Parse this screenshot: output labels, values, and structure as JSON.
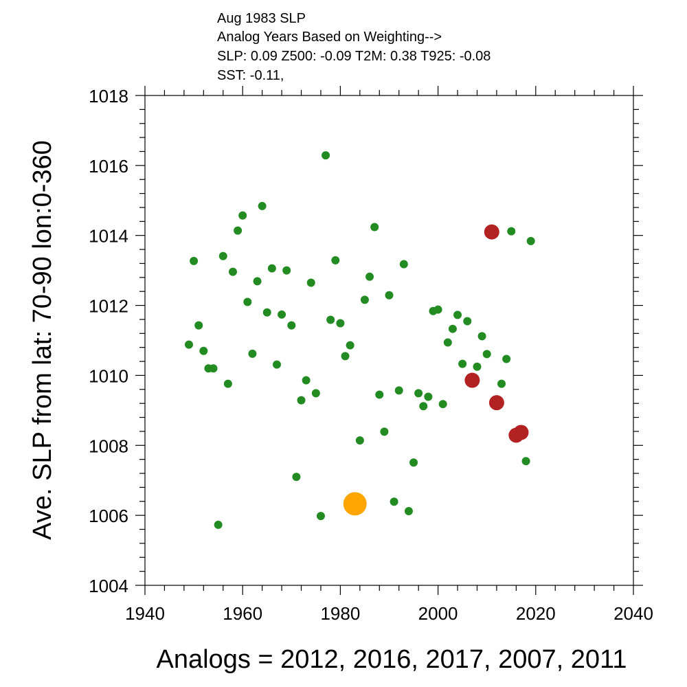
{
  "chart_data": {
    "type": "scatter",
    "title_lines": [
      "Aug 1983 SLP",
      "Analog Years Based on Weighting-->",
      "SLP:  0.09 Z500: -0.09 T2M:  0.38 T925: -0.08",
      "SST: -0.11,"
    ],
    "xlabel": "Analogs = 2012, 2016, 2017, 2007, 2011",
    "ylabel": "Ave. SLP from lat: 70-90 lon:0-360",
    "xlim": [
      1940,
      2040
    ],
    "ylim": [
      1004,
      1018
    ],
    "x_ticks": [
      1940,
      1960,
      1980,
      2000,
      2020,
      2040
    ],
    "y_ticks": [
      1004,
      1006,
      1008,
      1010,
      1012,
      1014,
      1016,
      1018
    ],
    "grid": false,
    "colors": {
      "all_years": "#228B22",
      "analog_years": "#B22222",
      "target_year": "#FFA500"
    },
    "series": [
      {
        "key": "all_years",
        "points": [
          [
            1949,
            1010.88
          ],
          [
            1950,
            1013.27
          ],
          [
            1951,
            1011.43
          ],
          [
            1952,
            1010.7
          ],
          [
            1953,
            1010.2
          ],
          [
            1954,
            1010.2
          ],
          [
            1955,
            1005.73
          ],
          [
            1956,
            1013.41
          ],
          [
            1957,
            1009.76
          ],
          [
            1958,
            1012.96
          ],
          [
            1959,
            1014.14
          ],
          [
            1960,
            1014.57
          ],
          [
            1961,
            1012.1
          ],
          [
            1962,
            1010.62
          ],
          [
            1963,
            1012.69
          ],
          [
            1964,
            1014.84
          ],
          [
            1965,
            1011.8
          ],
          [
            1966,
            1013.06
          ],
          [
            1967,
            1010.31
          ],
          [
            1968,
            1011.74
          ],
          [
            1969,
            1013.0
          ],
          [
            1970,
            1011.43
          ],
          [
            1971,
            1007.1
          ],
          [
            1972,
            1009.29
          ],
          [
            1973,
            1009.86
          ],
          [
            1974,
            1012.65
          ],
          [
            1975,
            1009.49
          ],
          [
            1976,
            1005.98
          ],
          [
            1977,
            1016.29
          ],
          [
            1978,
            1011.59
          ],
          [
            1979,
            1013.29
          ],
          [
            1980,
            1011.49
          ],
          [
            1981,
            1010.55
          ],
          [
            1982,
            1010.86
          ],
          [
            1984,
            1008.14
          ],
          [
            1985,
            1012.16
          ],
          [
            1986,
            1012.82
          ],
          [
            1987,
            1014.24
          ],
          [
            1988,
            1009.45
          ],
          [
            1989,
            1008.39
          ],
          [
            1990,
            1012.29
          ],
          [
            1991,
            1006.39
          ],
          [
            1992,
            1009.57
          ],
          [
            1993,
            1013.18
          ],
          [
            1994,
            1006.12
          ],
          [
            1995,
            1007.51
          ],
          [
            1996,
            1009.49
          ],
          [
            1997,
            1009.12
          ],
          [
            1998,
            1009.39
          ],
          [
            1999,
            1011.84
          ],
          [
            2000,
            1011.88
          ],
          [
            2001,
            1009.18
          ],
          [
            2002,
            1010.94
          ],
          [
            2003,
            1011.33
          ],
          [
            2004,
            1011.73
          ],
          [
            2005,
            1010.33
          ],
          [
            2006,
            1011.55
          ],
          [
            2008,
            1010.25
          ],
          [
            2009,
            1011.12
          ],
          [
            2010,
            1010.61
          ],
          [
            2013,
            1009.76
          ],
          [
            2014,
            1010.47
          ],
          [
            2015,
            1014.12
          ],
          [
            2018,
            1007.55
          ],
          [
            2019,
            1013.84
          ]
        ]
      },
      {
        "key": "analog_years",
        "points": [
          [
            2007,
            1009.86
          ],
          [
            2011,
            1014.1
          ],
          [
            2012,
            1009.22
          ],
          [
            2016,
            1008.29
          ],
          [
            2017,
            1008.37
          ]
        ]
      },
      {
        "key": "target_year",
        "points": [
          [
            1983,
            1006.33
          ]
        ]
      }
    ]
  }
}
